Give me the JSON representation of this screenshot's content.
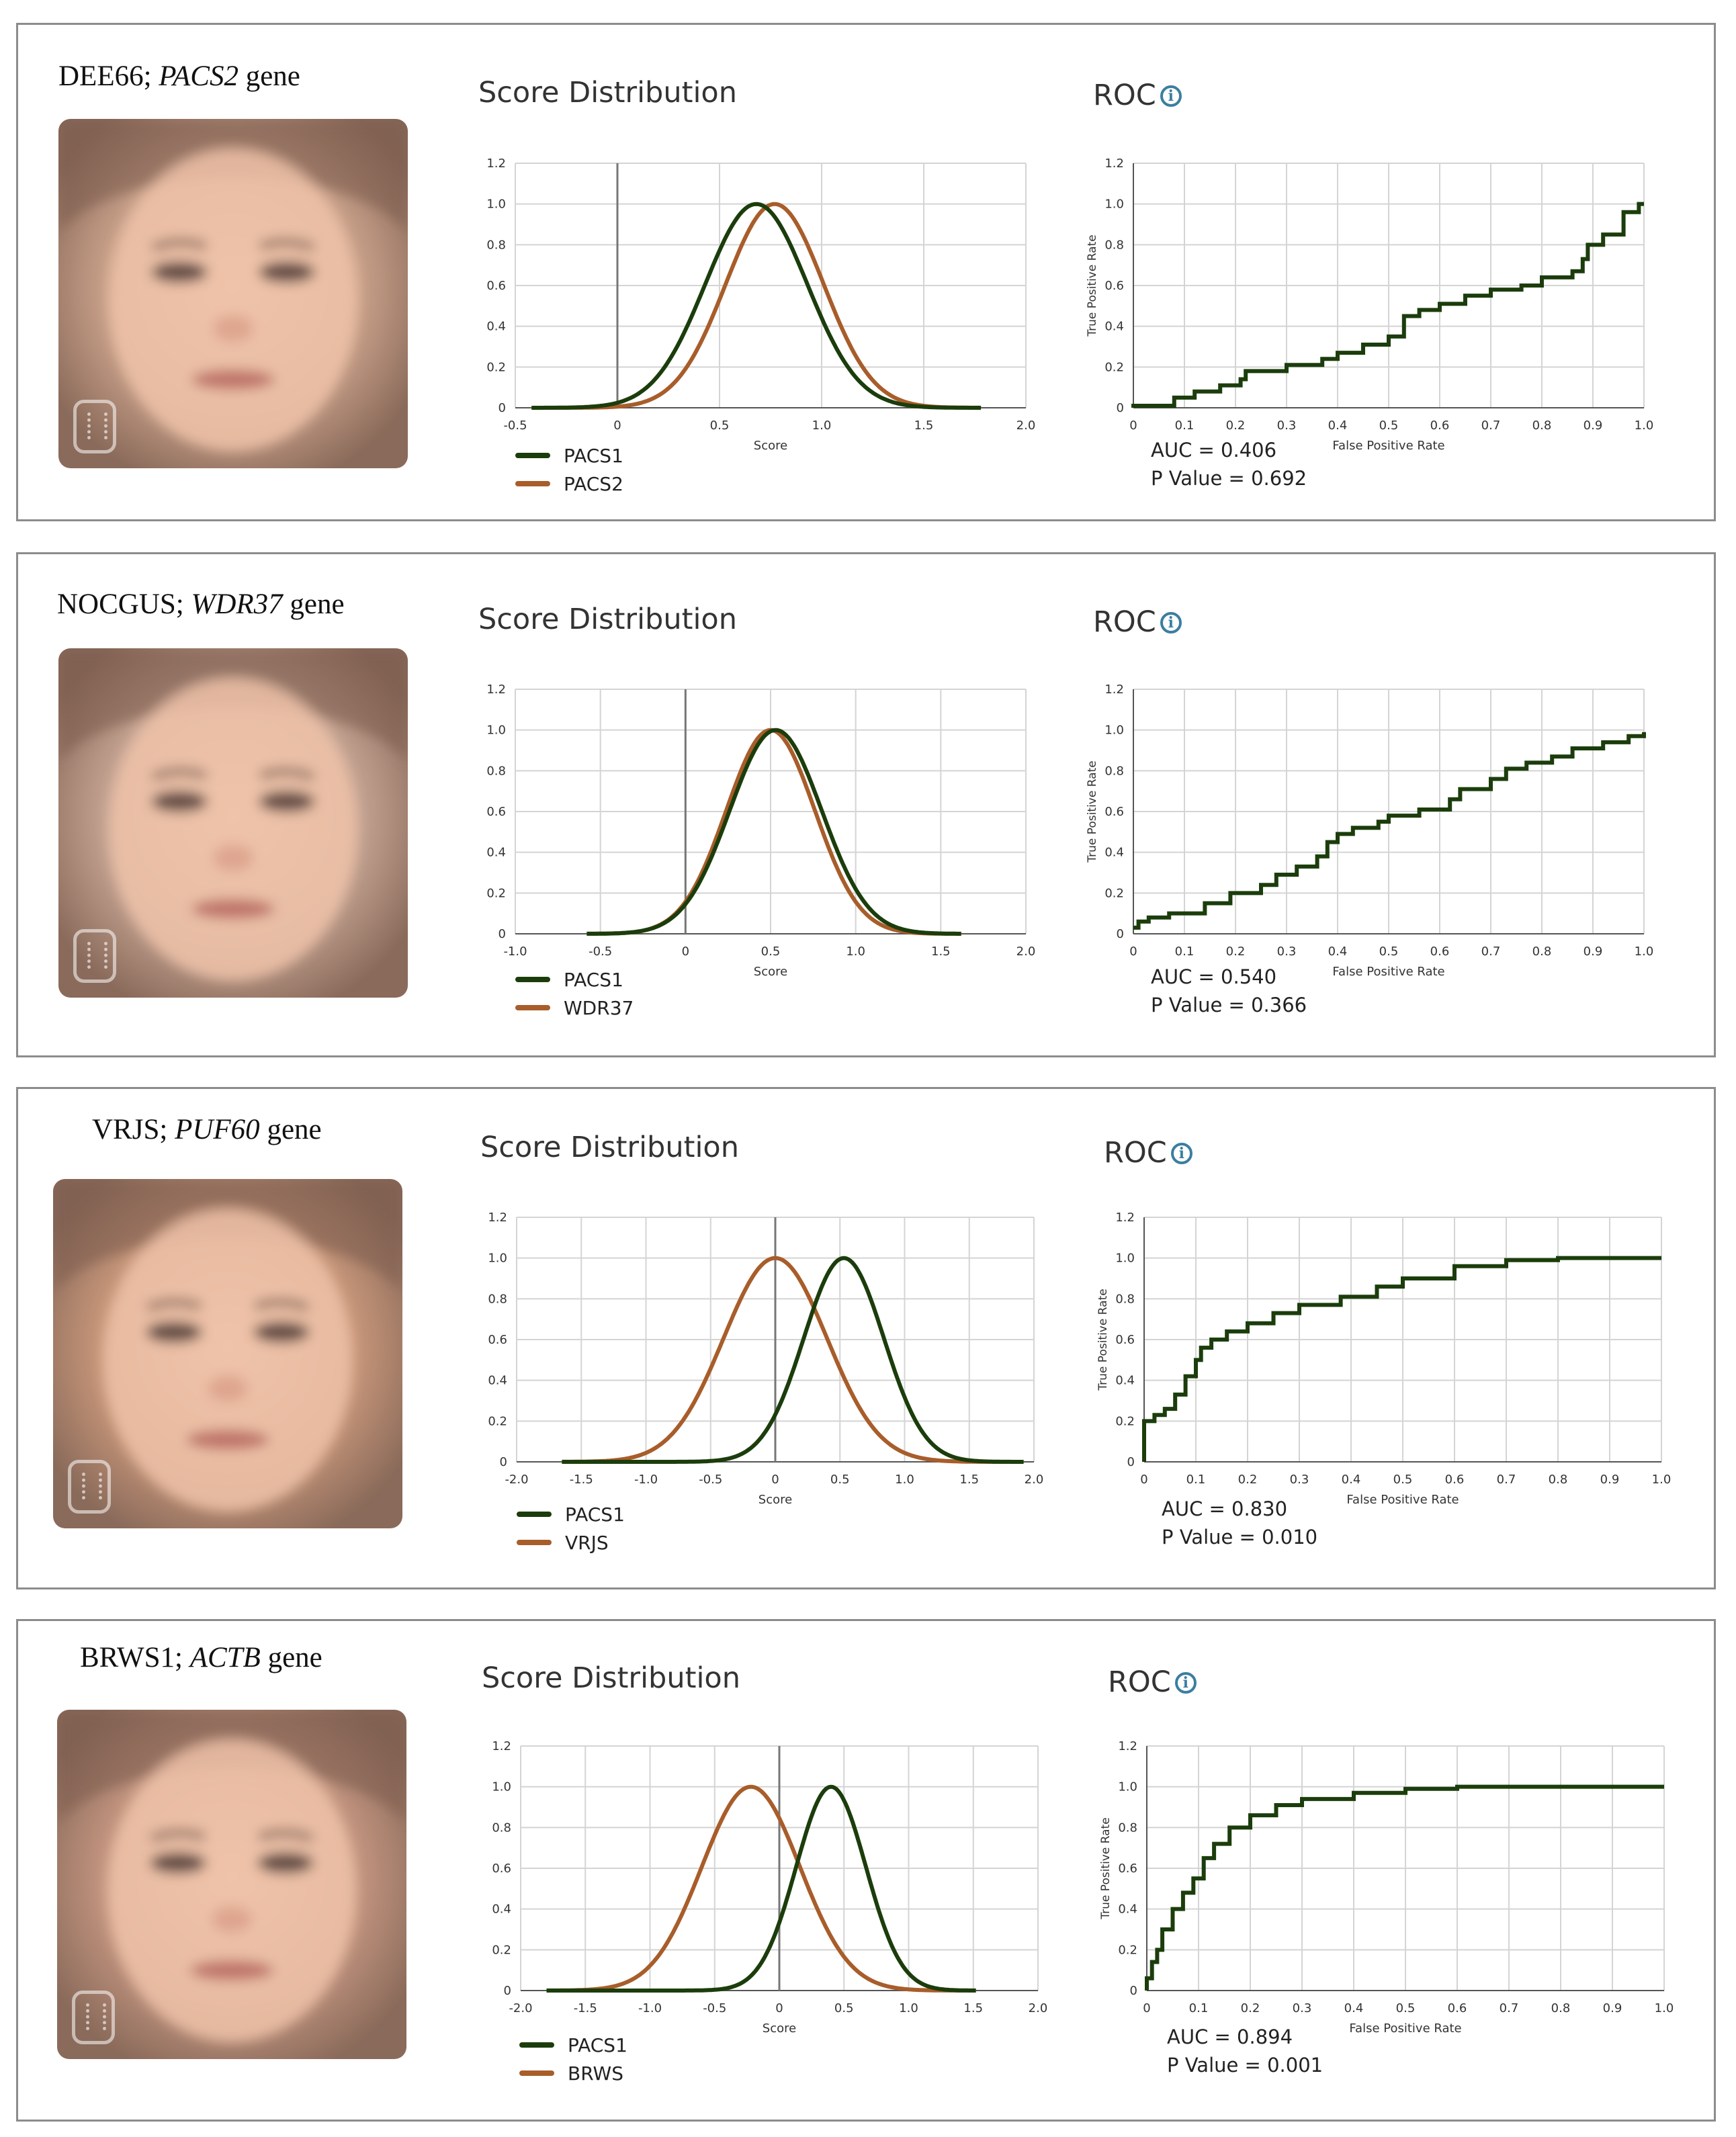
{
  "colors": {
    "pacs1": "#1b3d0c",
    "comparison": "#a85d2a"
  },
  "labels": {
    "score_distribution": "Score Distribution",
    "roc": "ROC",
    "score_axis": "Score",
    "fpr_axis": "False Positive Rate",
    "tpr_axis": "True Positive Rate"
  },
  "panels": [
    {
      "syndrome": "DEE66;",
      "gene": "PACS2",
      "gene_suffix": "gene",
      "auc": "AUC = 0.406",
      "pvalue": "P Value = 0.692",
      "legend": [
        "PACS1",
        "PACS2"
      ],
      "face_tint": "#c9a18a"
    },
    {
      "syndrome": "NOCGUS;",
      "gene": "WDR37",
      "gene_suffix": "gene",
      "auc": "AUC = 0.540",
      "pvalue": "P Value = 0.366",
      "legend": [
        "PACS1",
        "WDR37"
      ],
      "face_tint": "#c4a392"
    },
    {
      "syndrome": "VRJS;",
      "gene": "PUF60",
      "gene_suffix": "gene",
      "auc": "AUC = 0.830",
      "pvalue": "P Value = 0.010",
      "legend": [
        "PACS1",
        "VRJS"
      ],
      "face_tint": "#c8977a"
    },
    {
      "syndrome": "BRWS1;",
      "gene": "ACTB",
      "gene_suffix": "gene",
      "auc": "AUC = 0.894",
      "pvalue": "P Value = 0.001",
      "legend": [
        "PACS1",
        "BRWS"
      ],
      "face_tint": "#c39580"
    }
  ],
  "chart_data": [
    {
      "id": "dist-1",
      "type": "line",
      "title": "Score Distribution",
      "xlabel": "Score",
      "ylabel": "",
      "xlim": [
        -0.5,
        2.0
      ],
      "ylim": [
        0,
        1.2
      ],
      "xticks": [
        "-0.5",
        "0",
        "0.5",
        "1.0",
        "1.5",
        "2.0"
      ],
      "yticks": [
        "0",
        "0.2",
        "0.4",
        "0.6",
        "0.8",
        "1.0",
        "1.2"
      ],
      "series": [
        {
          "name": "PACS1",
          "mean": 0.68,
          "sd": 0.25,
          "range": [
            -0.42,
            1.78
          ]
        },
        {
          "name": "PACS2",
          "mean": 0.77,
          "sd": 0.24,
          "range": [
            -0.42,
            1.78
          ]
        }
      ]
    },
    {
      "id": "roc-1",
      "type": "line",
      "title": "ROC",
      "xlabel": "False Positive Rate",
      "ylabel": "True Positive Rate",
      "xlim": [
        0,
        1.0
      ],
      "ylim": [
        0,
        1.2
      ],
      "xticks": [
        "0",
        "0.1",
        "0.2",
        "0.3",
        "0.4",
        "0.5",
        "0.6",
        "0.7",
        "0.8",
        "0.9",
        "1.0"
      ],
      "yticks": [
        "0",
        "0.2",
        "0.4",
        "0.6",
        "0.8",
        "1.0",
        "1.2"
      ],
      "auc": 0.406,
      "points": [
        [
          0,
          0
        ],
        [
          0,
          0.01
        ],
        [
          0.08,
          0.01
        ],
        [
          0.08,
          0.05
        ],
        [
          0.12,
          0.08
        ],
        [
          0.17,
          0.11
        ],
        [
          0.21,
          0.14
        ],
        [
          0.22,
          0.18
        ],
        [
          0.3,
          0.21
        ],
        [
          0.37,
          0.24
        ],
        [
          0.4,
          0.27
        ],
        [
          0.45,
          0.31
        ],
        [
          0.5,
          0.35
        ],
        [
          0.53,
          0.37
        ],
        [
          0.53,
          0.45
        ],
        [
          0.56,
          0.48
        ],
        [
          0.6,
          0.51
        ],
        [
          0.65,
          0.55
        ],
        [
          0.7,
          0.58
        ],
        [
          0.76,
          0.6
        ],
        [
          0.8,
          0.64
        ],
        [
          0.86,
          0.67
        ],
        [
          0.88,
          0.73
        ],
        [
          0.89,
          0.8
        ],
        [
          0.92,
          0.85
        ],
        [
          0.96,
          0.9
        ],
        [
          0.96,
          0.96
        ],
        [
          0.99,
          1.0
        ],
        [
          1.0,
          1.0
        ]
      ]
    },
    {
      "id": "dist-2",
      "type": "line",
      "title": "Score Distribution",
      "xlabel": "Score",
      "ylabel": "",
      "xlim": [
        -1.0,
        2.0
      ],
      "ylim": [
        0,
        1.2
      ],
      "xticks": [
        "-1.0",
        "-0.5",
        "0",
        "0.5",
        "1.0",
        "1.5",
        "2.0"
      ],
      "yticks": [
        "0",
        "0.2",
        "0.4",
        "0.6",
        "0.8",
        "1.0",
        "1.2"
      ],
      "series": [
        {
          "name": "PACS1",
          "mean": 0.53,
          "sd": 0.27,
          "range": [
            -0.58,
            1.62
          ]
        },
        {
          "name": "WDR37",
          "mean": 0.5,
          "sd": 0.26,
          "range": [
            -0.58,
            1.62
          ]
        }
      ]
    },
    {
      "id": "roc-2",
      "type": "line",
      "title": "ROC",
      "xlabel": "False Positive Rate",
      "ylabel": "True Positive Rate",
      "xlim": [
        0,
        1.0
      ],
      "ylim": [
        0,
        1.2
      ],
      "xticks": [
        "0",
        "0.1",
        "0.2",
        "0.3",
        "0.4",
        "0.5",
        "0.6",
        "0.7",
        "0.8",
        "0.9",
        "1.0"
      ],
      "yticks": [
        "0",
        "0.2",
        "0.4",
        "0.6",
        "0.8",
        "1.0",
        "1.2"
      ],
      "auc": 0.54,
      "points": [
        [
          0,
          0.03
        ],
        [
          0.01,
          0.06
        ],
        [
          0.03,
          0.08
        ],
        [
          0.07,
          0.1
        ],
        [
          0.14,
          0.15
        ],
        [
          0.19,
          0.2
        ],
        [
          0.25,
          0.24
        ],
        [
          0.28,
          0.29
        ],
        [
          0.32,
          0.33
        ],
        [
          0.36,
          0.38
        ],
        [
          0.38,
          0.45
        ],
        [
          0.4,
          0.49
        ],
        [
          0.43,
          0.52
        ],
        [
          0.48,
          0.55
        ],
        [
          0.5,
          0.58
        ],
        [
          0.56,
          0.61
        ],
        [
          0.62,
          0.66
        ],
        [
          0.64,
          0.71
        ],
        [
          0.7,
          0.76
        ],
        [
          0.73,
          0.81
        ],
        [
          0.77,
          0.84
        ],
        [
          0.82,
          0.87
        ],
        [
          0.86,
          0.91
        ],
        [
          0.92,
          0.94
        ],
        [
          0.97,
          0.97
        ],
        [
          1.0,
          0.99
        ]
      ]
    },
    {
      "id": "dist-3",
      "type": "line",
      "title": "Score Distribution",
      "xlabel": "Score",
      "ylabel": "",
      "xlim": [
        -2.0,
        2.0
      ],
      "ylim": [
        0,
        1.2
      ],
      "xticks": [
        "-2.0",
        "-1.5",
        "-1.0",
        "-0.5",
        "0",
        "0.5",
        "1.0",
        "1.5",
        "2.0"
      ],
      "yticks": [
        "0",
        "0.2",
        "0.4",
        "0.6",
        "0.8",
        "1.0",
        "1.2"
      ],
      "series": [
        {
          "name": "PACS1",
          "mean": 0.53,
          "sd": 0.31,
          "range": [
            -1.65,
            1.92
          ]
        },
        {
          "name": "VRJS",
          "mean": 0.0,
          "sd": 0.4,
          "range": [
            -1.65,
            1.92
          ]
        }
      ]
    },
    {
      "id": "roc-3",
      "type": "line",
      "title": "ROC",
      "xlabel": "False Positive Rate",
      "ylabel": "True Positive Rate",
      "xlim": [
        0,
        1.0
      ],
      "ylim": [
        0,
        1.2
      ],
      "xticks": [
        "0",
        "0.1",
        "0.2",
        "0.3",
        "0.4",
        "0.5",
        "0.6",
        "0.7",
        "0.8",
        "0.9",
        "1.0"
      ],
      "yticks": [
        "0",
        "0.2",
        "0.4",
        "0.6",
        "0.8",
        "1.0",
        "1.2"
      ],
      "auc": 0.83,
      "points": [
        [
          0,
          0
        ],
        [
          0,
          0.2
        ],
        [
          0.02,
          0.23
        ],
        [
          0.04,
          0.26
        ],
        [
          0.06,
          0.33
        ],
        [
          0.08,
          0.42
        ],
        [
          0.1,
          0.5
        ],
        [
          0.11,
          0.56
        ],
        [
          0.13,
          0.6
        ],
        [
          0.16,
          0.64
        ],
        [
          0.2,
          0.68
        ],
        [
          0.25,
          0.73
        ],
        [
          0.3,
          0.77
        ],
        [
          0.38,
          0.81
        ],
        [
          0.45,
          0.86
        ],
        [
          0.5,
          0.9
        ],
        [
          0.6,
          0.96
        ],
        [
          0.7,
          0.99
        ],
        [
          0.8,
          1.0
        ],
        [
          1.0,
          1.0
        ]
      ]
    },
    {
      "id": "dist-4",
      "type": "line",
      "title": "Score Distribution",
      "xlabel": "Score",
      "ylabel": "",
      "xlim": [
        -2.0,
        2.0
      ],
      "ylim": [
        0,
        1.2
      ],
      "xticks": [
        "-2.0",
        "-1.5",
        "-1.0",
        "-0.5",
        "0",
        "0.5",
        "1.0",
        "1.5",
        "2.0"
      ],
      "yticks": [
        "0",
        "0.2",
        "0.4",
        "0.6",
        "0.8",
        "1.0",
        "1.2"
      ],
      "series": [
        {
          "name": "PACS1",
          "mean": 0.4,
          "sd": 0.27,
          "range": [
            -1.8,
            1.52
          ]
        },
        {
          "name": "BRWS",
          "mean": -0.22,
          "sd": 0.38,
          "range": [
            -1.8,
            1.52
          ]
        }
      ]
    },
    {
      "id": "roc-4",
      "type": "line",
      "title": "ROC",
      "xlabel": "False Positive Rate",
      "ylabel": "True Positive Rate",
      "xlim": [
        0,
        1.0
      ],
      "ylim": [
        0,
        1.2
      ],
      "xticks": [
        "0",
        "0.1",
        "0.2",
        "0.3",
        "0.4",
        "0.5",
        "0.6",
        "0.7",
        "0.8",
        "0.9",
        "1.0"
      ],
      "yticks": [
        "0",
        "0.2",
        "0.4",
        "0.6",
        "0.8",
        "1.0",
        "1.2"
      ],
      "auc": 0.894,
      "points": [
        [
          0,
          0
        ],
        [
          0,
          0.06
        ],
        [
          0.01,
          0.14
        ],
        [
          0.02,
          0.2
        ],
        [
          0.03,
          0.3
        ],
        [
          0.05,
          0.4
        ],
        [
          0.07,
          0.48
        ],
        [
          0.09,
          0.55
        ],
        [
          0.11,
          0.65
        ],
        [
          0.13,
          0.72
        ],
        [
          0.16,
          0.8
        ],
        [
          0.2,
          0.86
        ],
        [
          0.25,
          0.91
        ],
        [
          0.3,
          0.94
        ],
        [
          0.4,
          0.97
        ],
        [
          0.5,
          0.99
        ],
        [
          0.6,
          1.0
        ],
        [
          1.0,
          1.0
        ]
      ]
    }
  ]
}
